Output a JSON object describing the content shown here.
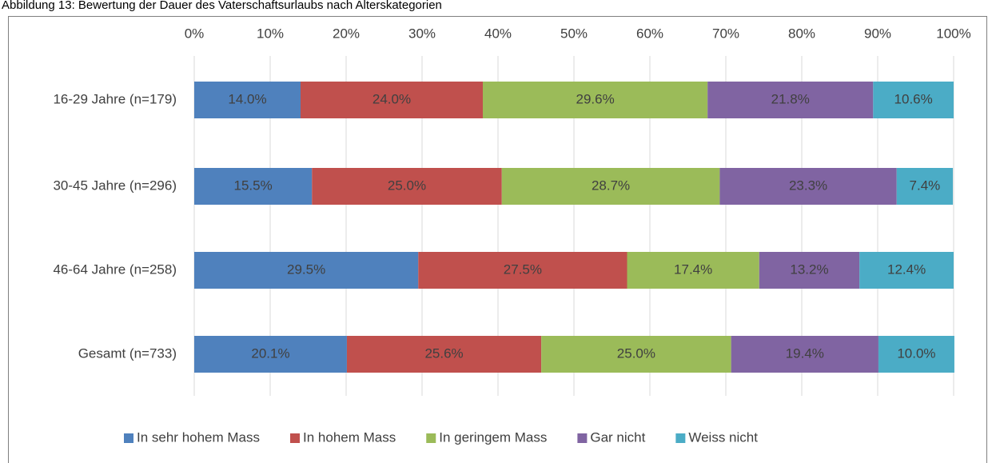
{
  "chart_data": {
    "type": "stacked_bar_horizontal",
    "title": "Abbildung 13: Bewertung der Dauer des Vaterschaftsurlaubs nach Alterskategorien",
    "categories": [
      "16-29 Jahre (n=179)",
      "30-45 Jahre (n=296)",
      "46-64 Jahre (n=258)",
      "Gesamt (n=733)"
    ],
    "series": [
      {
        "name": "In sehr hohem Mass",
        "color": "#4f81bd",
        "values": [
          14.0,
          15.5,
          29.5,
          20.1
        ],
        "value_labels": [
          "14.0%",
          "15.5%",
          "29.5%",
          "20.1%"
        ]
      },
      {
        "name": "In hohem Mass",
        "color": "#c0504d",
        "values": [
          24.0,
          25.0,
          27.5,
          25.6
        ],
        "value_labels": [
          "24.0%",
          "25.0%",
          "27.5%",
          "25.6%"
        ]
      },
      {
        "name": "In geringem Mass",
        "color": "#9bbb59",
        "values": [
          29.6,
          28.7,
          17.4,
          25.0
        ],
        "value_labels": [
          "29.6%",
          "28.7%",
          "17.4%",
          "25.0%"
        ]
      },
      {
        "name": "Gar nicht",
        "color": "#8064a2",
        "values": [
          21.8,
          23.3,
          13.2,
          19.4
        ],
        "value_labels": [
          "21.8%",
          "23.3%",
          "13.2%",
          "19.4%"
        ]
      },
      {
        "name": "Weiss nicht",
        "color": "#4bacc6",
        "values": [
          10.6,
          7.4,
          12.4,
          10.0
        ],
        "value_labels": [
          "10.6%",
          "7.4%",
          "12.4%",
          "10.0%"
        ]
      }
    ],
    "xlim": [
      0,
      100
    ],
    "xticks": [
      {
        "value": 0,
        "label": "0%"
      },
      {
        "value": 10,
        "label": "10%"
      },
      {
        "value": 20,
        "label": "20%"
      },
      {
        "value": 30,
        "label": "30%"
      },
      {
        "value": 40,
        "label": "40%"
      },
      {
        "value": 50,
        "label": "50%"
      },
      {
        "value": 60,
        "label": "60%"
      },
      {
        "value": 70,
        "label": "70%"
      },
      {
        "value": 80,
        "label": "80%"
      },
      {
        "value": 90,
        "label": "90%"
      },
      {
        "value": 100,
        "label": "100%"
      }
    ],
    "grid": true,
    "legend": "bottom"
  }
}
